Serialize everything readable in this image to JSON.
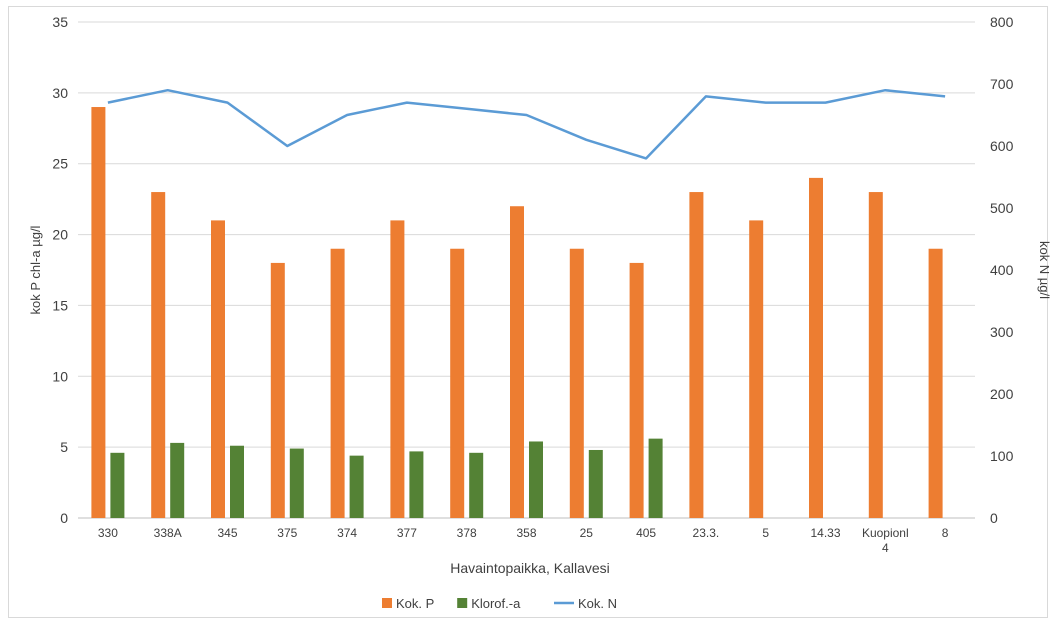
{
  "chart_data": {
    "type": "bar",
    "categories": [
      "330",
      "338A",
      "345",
      "375",
      "374",
      "377",
      "378",
      "358",
      "25",
      "405",
      "23.3.",
      "5",
      "14.33",
      "Kuopionl 4",
      "8"
    ],
    "series": [
      {
        "name": "Kok. P",
        "type": "bar",
        "axis": "left",
        "color": "#ED7D31",
        "values": [
          29,
          23,
          21,
          18,
          19,
          21,
          19,
          22,
          19,
          18,
          23,
          21,
          24,
          23,
          19
        ]
      },
      {
        "name": "Klorof.-a",
        "type": "bar",
        "axis": "left",
        "color": "#548235",
        "values": [
          4.6,
          5.3,
          5.1,
          4.9,
          4.4,
          4.7,
          4.6,
          5.4,
          4.8,
          5.6,
          null,
          null,
          null,
          null,
          null
        ]
      },
      {
        "name": "Kok. N",
        "type": "line",
        "axis": "right",
        "color": "#5B9BD5",
        "values": [
          670,
          690,
          670,
          600,
          650,
          670,
          660,
          650,
          610,
          580,
          680,
          670,
          670,
          690,
          680
        ]
      }
    ],
    "xlabel": "Havaintopaikka, Kallavesi",
    "ylabel": "kok P chl-a µg/l",
    "y2label": "kok N µg/l",
    "ylim": [
      0,
      35
    ],
    "y2lim": [
      0,
      800
    ],
    "yticks": [
      "0",
      "5",
      "10",
      "15",
      "20",
      "25",
      "30",
      "35"
    ],
    "y2ticks": [
      "0",
      "100",
      "200",
      "300",
      "400",
      "500",
      "600",
      "700",
      "800"
    ],
    "grid": true,
    "legend": "bottom"
  }
}
